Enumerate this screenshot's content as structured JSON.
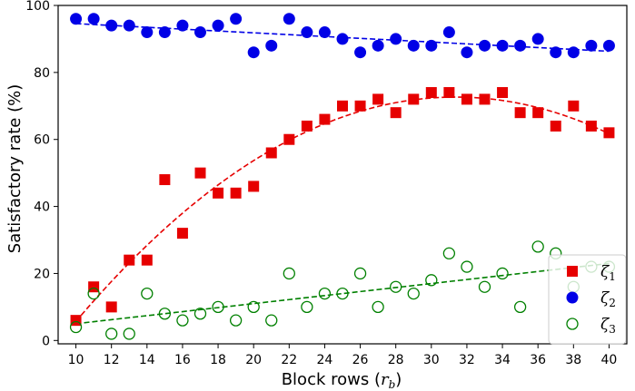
{
  "chart_data": {
    "type": "scatter",
    "xlabel_main": "Block rows (",
    "xlabel_sym": "r",
    "xlabel_sub": "b",
    "xlabel_end": ")",
    "ylabel": "Satisfactory rate (%)",
    "xlim": [
      9,
      41
    ],
    "ylim": [
      -1,
      100
    ],
    "xticks": [
      10,
      12,
      14,
      16,
      18,
      20,
      22,
      24,
      26,
      28,
      30,
      32,
      34,
      36,
      38,
      40
    ],
    "yticks": [
      0,
      20,
      40,
      60,
      80,
      100
    ],
    "grid": false,
    "legend_position": "lower-right",
    "series": [
      {
        "id": "zeta1",
        "name_sym": "ζ",
        "name_sub": "1",
        "marker": "square",
        "filled": true,
        "color": "#e60000",
        "trend": "quadratic",
        "x": [
          10,
          11,
          12,
          13,
          14,
          15,
          16,
          17,
          18,
          19,
          20,
          21,
          22,
          23,
          24,
          25,
          26,
          27,
          28,
          29,
          30,
          31,
          32,
          33,
          34,
          35,
          36,
          37,
          38,
          39,
          40
        ],
        "y": [
          6,
          16,
          10,
          24,
          24,
          48,
          32,
          50,
          44,
          44,
          46,
          56,
          60,
          64,
          66,
          70,
          70,
          72,
          68,
          72,
          74,
          74,
          72,
          72,
          74,
          68,
          68,
          64,
          70,
          64,
          62
        ]
      },
      {
        "id": "zeta2",
        "name_sym": "ζ",
        "name_sub": "2",
        "marker": "circle",
        "filled": true,
        "color": "#0000e6",
        "trend": "linear",
        "x": [
          10,
          11,
          12,
          13,
          14,
          15,
          16,
          17,
          18,
          19,
          20,
          21,
          22,
          23,
          24,
          25,
          26,
          27,
          28,
          29,
          30,
          31,
          32,
          33,
          34,
          35,
          36,
          37,
          38,
          39,
          40
        ],
        "y": [
          96,
          96,
          94,
          94,
          92,
          92,
          94,
          92,
          94,
          96,
          86,
          88,
          96,
          92,
          92,
          90,
          86,
          88,
          90,
          88,
          88,
          92,
          86,
          88,
          88,
          88,
          90,
          86,
          86,
          88,
          88
        ]
      },
      {
        "id": "zeta3",
        "name_sym": "ζ",
        "name_sub": "3",
        "marker": "circle",
        "filled": false,
        "color": "#008000",
        "trend": "linear",
        "x": [
          10,
          11,
          12,
          13,
          14,
          15,
          16,
          17,
          18,
          19,
          20,
          21,
          22,
          23,
          24,
          25,
          26,
          27,
          28,
          29,
          30,
          31,
          32,
          33,
          34,
          35,
          36,
          37,
          38,
          39,
          40
        ],
        "y": [
          4,
          14,
          2,
          2,
          14,
          8,
          6,
          8,
          10,
          6,
          10,
          6,
          20,
          10,
          14,
          14,
          20,
          10,
          16,
          14,
          18,
          26,
          22,
          16,
          20,
          10,
          28,
          26,
          16,
          22,
          22
        ]
      }
    ]
  }
}
